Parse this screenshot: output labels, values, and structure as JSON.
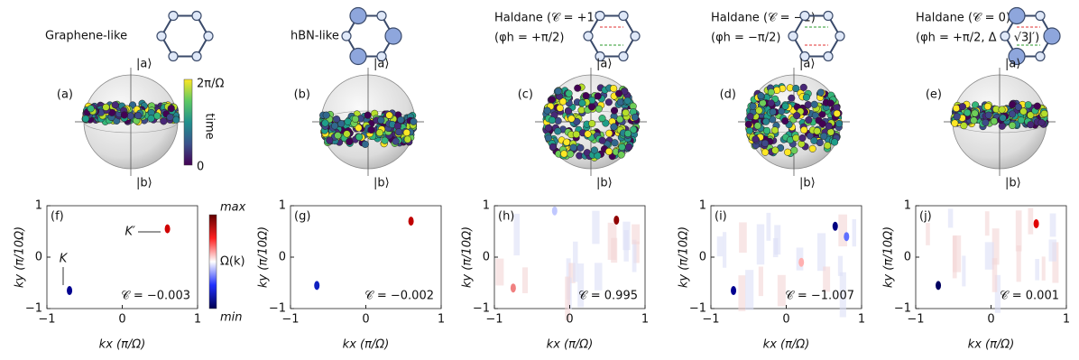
{
  "columns": [
    {
      "title": [
        "Graphene-like"
      ],
      "sphere_label": "(a)",
      "map_label": "(f)",
      "chern": "𝒞 = −0.003"
    },
    {
      "title": [
        "hBN-like"
      ],
      "sphere_label": "(b)",
      "map_label": "(g)",
      "chern": "𝒞 = −0.002"
    },
    {
      "title": [
        "Haldane (𝒞 = +1)",
        "(φh = +π/2)"
      ],
      "sphere_label": "(c)",
      "map_label": "(h)",
      "chern": "𝒞 = 0.995"
    },
    {
      "title": [
        "Haldane (𝒞 = −1)",
        "(φh = −π/2)"
      ],
      "sphere_label": "(d)",
      "map_label": "(i)",
      "chern": "𝒞 = −1.007"
    },
    {
      "title": [
        "Haldane (𝒞 = 0)",
        "(φh = +π/2, Δ > √3J′)"
      ],
      "sphere_label": "(e)",
      "map_label": "(j)",
      "chern": "𝒞 = 0.001"
    }
  ],
  "bloch": {
    "top": "|a⟩",
    "bottom": "|b⟩"
  },
  "colorbar_time": {
    "top": "2π/Ω",
    "bottom": "0",
    "label": "time"
  },
  "colorbar_berry": {
    "top": "max",
    "bottom": "min",
    "label": "Ω(k)"
  },
  "annotations": {
    "K": "K",
    "K_prime": "K′"
  },
  "axes": {
    "xlabel": "kx (π/Ω)",
    "ylabel": "ky (π/10Ω)",
    "xticks": [
      {
        "value": -1,
        "label": "−1"
      },
      0,
      1
    ],
    "yticks": [
      {
        "value": -1,
        "label": "−1"
      },
      0,
      1
    ]
  }
}
